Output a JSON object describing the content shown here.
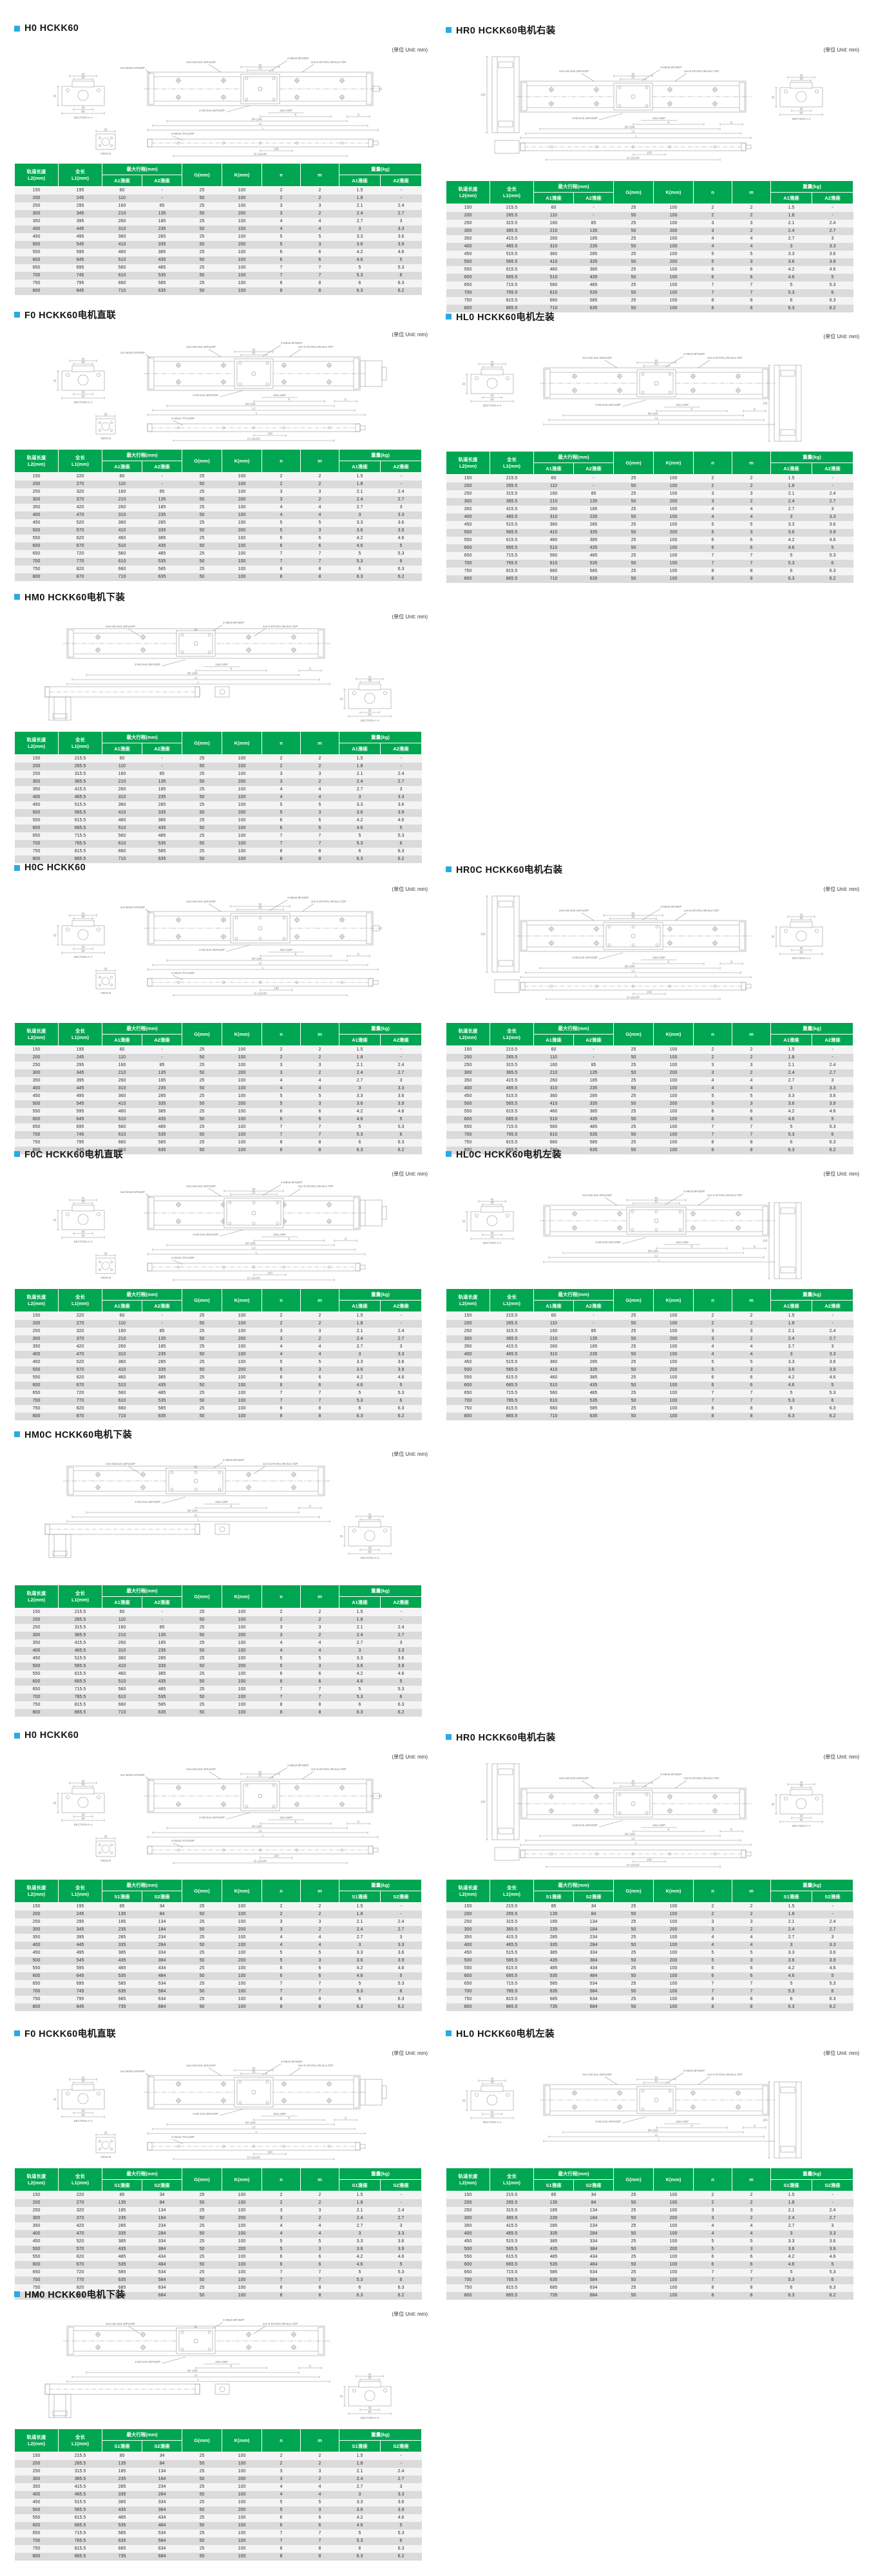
{
  "unit_label": "(单位 Unit: mm)",
  "colors": {
    "header_green": "#00A651",
    "bullet_blue": "#29ABE2"
  },
  "table_header": {
    "l2_line1": "轨道长度",
    "l2_line2": "L2(mm)",
    "l1_line1": "全长",
    "l1_line2": "L1(mm)",
    "stroke": "最大行程(mm)",
    "g": "G(mm)",
    "k": "K(mm)",
    "n": "n",
    "m": "m",
    "weight": "重量(kg)",
    "a1": "A1滑座",
    "a2": "A2滑座",
    "s1": "S1滑座",
    "s2": "S2滑座"
  },
  "columns": {
    "l2": [
      "150",
      "200",
      "250",
      "300",
      "350",
      "400",
      "450",
      "500",
      "550",
      "600",
      "650",
      "700",
      "750",
      "800"
    ],
    "l1_45": [
      "195",
      "245",
      "295",
      "345",
      "395",
      "445",
      "495",
      "545",
      "595",
      "645",
      "695",
      "745",
      "795",
      "845"
    ],
    "l1_70": [
      "220",
      "270",
      "320",
      "370",
      "420",
      "470",
      "520",
      "570",
      "620",
      "670",
      "720",
      "770",
      "820",
      "870"
    ],
    "l1_655": [
      "215.5",
      "265.5",
      "315.5",
      "365.5",
      "415.5",
      "465.5",
      "515.5",
      "565.5",
      "615.5",
      "665.5",
      "715.5",
      "765.5",
      "815.5",
      "865.5"
    ],
    "stroke_a1": [
      "60",
      "110",
      "160",
      "210",
      "260",
      "310",
      "360",
      "410",
      "460",
      "510",
      "560",
      "610",
      "660",
      "710"
    ],
    "stroke_a2": [
      "-",
      "-",
      "85",
      "135",
      "185",
      "235",
      "285",
      "335",
      "385",
      "435",
      "485",
      "535",
      "585",
      "635"
    ],
    "stroke_s1": [
      "85",
      "135",
      "185",
      "235",
      "285",
      "335",
      "385",
      "435",
      "485",
      "535",
      "585",
      "635",
      "685",
      "735"
    ],
    "stroke_s2": [
      "34",
      "84",
      "134",
      "184",
      "234",
      "284",
      "334",
      "384",
      "434",
      "484",
      "534",
      "584",
      "634",
      "684"
    ],
    "g": [
      "25",
      "50",
      "25",
      "50",
      "25",
      "50",
      "25",
      "50",
      "25",
      "50",
      "25",
      "50",
      "25",
      "50"
    ],
    "k": [
      "100",
      "100",
      "100",
      "200",
      "100",
      "100",
      "100",
      "200",
      "100",
      "100",
      "100",
      "100",
      "100",
      "100"
    ],
    "n": [
      "2",
      "2",
      "3",
      "3",
      "4",
      "4",
      "5",
      "5",
      "6",
      "6",
      "7",
      "7",
      "8",
      "8"
    ],
    "m": [
      "2",
      "2",
      "3",
      "2",
      "4",
      "4",
      "5",
      "3",
      "6",
      "6",
      "7",
      "7",
      "8",
      "8"
    ],
    "w1": [
      "1.5",
      "1.8",
      "2.1",
      "2.4",
      "2.7",
      "3",
      "3.3",
      "3.6",
      "4.2",
      "4.6",
      "5",
      "5.3",
      "6",
      "6.3"
    ],
    "w2": [
      "-",
      "-",
      "2.4",
      "2.7",
      "3",
      "3.3",
      "3.6",
      "3.9",
      "4.6",
      "5",
      "5.3",
      "6",
      "6.3",
      "6.2"
    ]
  },
  "drawing_labels": {
    "section_aa": "SECTION A-A",
    "view_b": "VIEW B",
    "ann1": "2xm-M2.5x0.45Px4DP",
    "ann2": "4-M5x0.8Px8DP",
    "ann3": "2xn-5.5THRU,Φ9.5x4.7DP",
    "ann4": "2x2-M3x0.5Px6DP",
    "ann5": "2-M2.5x0.45Px3DP",
    "ann6": "15x1.5DP",
    "ann7": "4-M4x0.7Px10DP",
    "dim_l": "L",
    "dim_l2": "L2",
    "dim_k": "K",
    "dim_mk": "(M-1)xK",
    "dim_g": "G",
    "dim_n100": "(n-1)x100",
    "dim_100": "100",
    "d82": "82",
    "d51": "51",
    "d42": "42",
    "d30": "30",
    "d60": "60",
    "d25": "25",
    "d33": "33",
    "d135": "135"
  },
  "sections": [
    {
      "title": "H0  HCKK60",
      "l1": "l1_45",
      "series": "A",
      "drawing": "standard",
      "variant": "std"
    },
    {
      "title": "F0  HCKK60电机直联",
      "l1": "l1_70",
      "series": "A",
      "drawing": "inline",
      "variant": "std"
    },
    {
      "title": "HM0  HCKK60电机下装",
      "l1": "l1_655",
      "series": "A",
      "drawing": "down",
      "variant": "std"
    },
    {
      "title": "H0C  HCKK60",
      "l1": "l1_45",
      "series": "A",
      "drawing": "standard",
      "variant": "wide"
    },
    {
      "title": "F0C  HCKK60电机直联",
      "l1": "l1_70",
      "series": "A",
      "drawing": "inline",
      "variant": "wide"
    },
    {
      "title": "HM0C  HCKK60电机下装",
      "l1": "l1_655",
      "series": "A",
      "drawing": "down",
      "variant": "wide"
    },
    {
      "title": "H0  HCKK60",
      "l1": "l1_45",
      "series": "S",
      "drawing": "standard",
      "variant": "low"
    },
    {
      "title": "F0  HCKK60电机直联",
      "l1": "l1_70",
      "series": "S",
      "drawing": "inline",
      "variant": "low"
    },
    {
      "title": "HM0  HCKK60电机下装",
      "l1": "l1_655",
      "series": "S",
      "drawing": "down",
      "variant": "low"
    },
    {
      "title": "HR0  HCKK60电机右装",
      "l1": "l1_655",
      "series": "A",
      "drawing": "motor-left",
      "variant": "std"
    },
    {
      "title": "HL0  HCKK60电机左装",
      "l1": "l1_655",
      "series": "A",
      "drawing": "motor-right",
      "variant": "std"
    },
    {
      "title": "HR0C  HCKK60电机右装",
      "l1": "l1_655",
      "series": "A",
      "drawing": "motor-left",
      "variant": "wide"
    },
    {
      "title": "HL0C  HCKK60电机左装",
      "l1": "l1_655",
      "series": "A",
      "drawing": "motor-right",
      "variant": "wide"
    },
    {
      "title": "HR0  HCKK60电机右装",
      "l1": "l1_655",
      "series": "S",
      "drawing": "motor-left",
      "variant": "low"
    },
    {
      "title": "HL0  HCKK60电机左装",
      "l1": "l1_655",
      "series": "S",
      "drawing": "motor-right",
      "variant": "low"
    }
  ]
}
